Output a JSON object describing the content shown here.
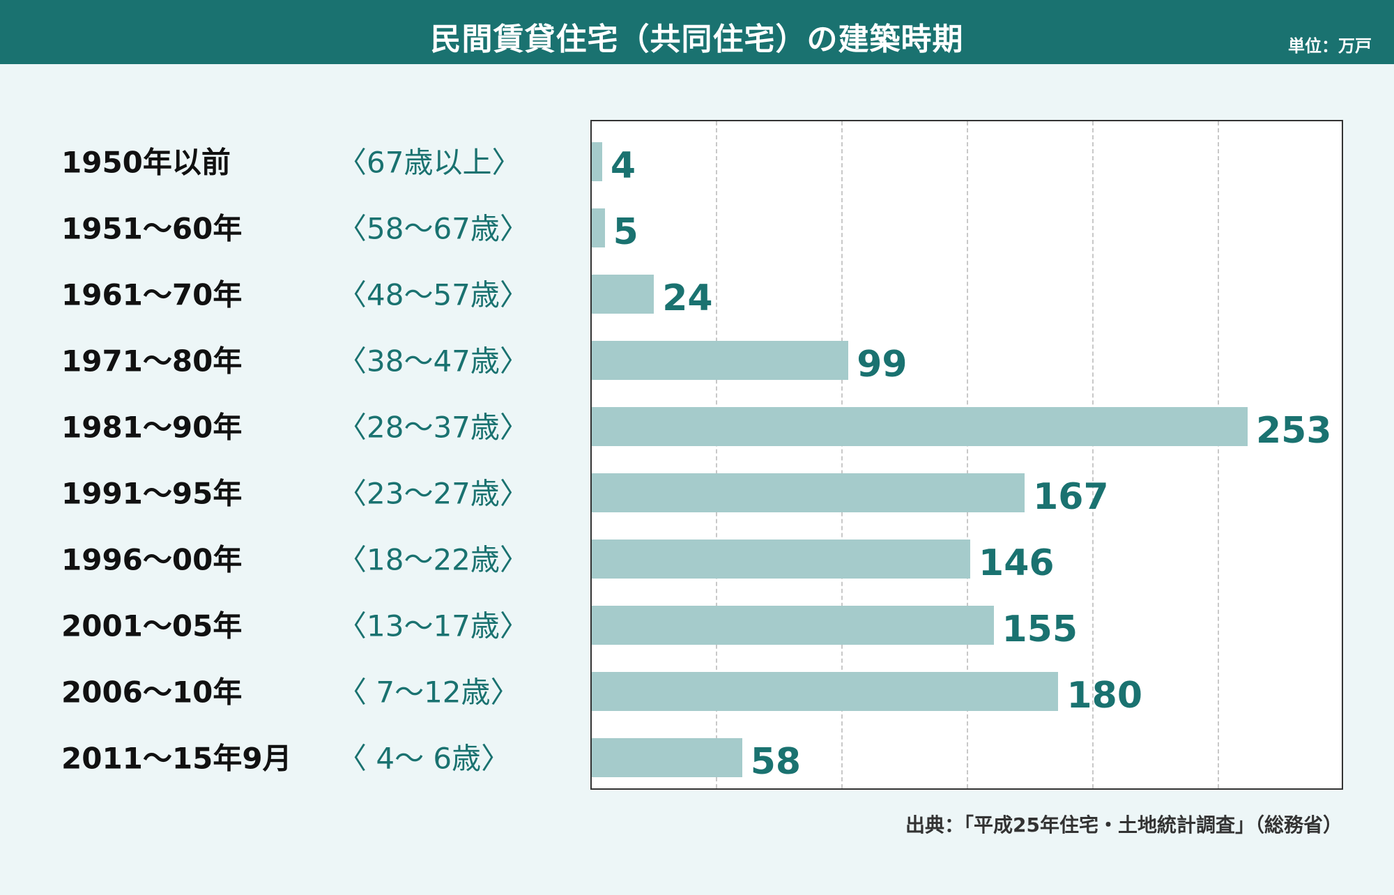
{
  "header": {
    "title": "民間賃貸住宅（共同住宅）の建築時期",
    "unit": "単位：万戸"
  },
  "source": "出典：「平成25年住宅・土地統計調査」（総務省）",
  "colors": {
    "header_bg": "#1a7270",
    "page_bg": "#edf6f7",
    "bar": "#a5cbcb",
    "value_text": "#1a7270",
    "age_text": "#1a7270"
  },
  "rows": [
    {
      "period": "1950年以前",
      "age": "〈67歳以上〉",
      "value": "4"
    },
    {
      "period": "1951〜60年",
      "age": "〈58〜67歳〉",
      "value": "5"
    },
    {
      "period": "1961〜70年",
      "age": "〈48〜57歳〉",
      "value": "24"
    },
    {
      "period": "1971〜80年",
      "age": "〈38〜47歳〉",
      "value": "99"
    },
    {
      "period": "1981〜90年",
      "age": "〈28〜37歳〉",
      "value": "253"
    },
    {
      "period": "1991〜95年",
      "age": "〈23〜27歳〉",
      "value": "167"
    },
    {
      "period": "1996〜00年",
      "age": "〈18〜22歳〉",
      "value": "146"
    },
    {
      "period": "2001〜05年",
      "age": "〈13〜17歳〉",
      "value": "155"
    },
    {
      "period": "2006〜10年",
      "age": "〈 7〜12歳〉",
      "value": "180"
    },
    {
      "period": "2011〜15年9月",
      "age": "〈 4〜 6歳〉",
      "value": "58"
    }
  ],
  "chart_data": {
    "type": "bar",
    "orientation": "horizontal",
    "title": "民間賃貸住宅（共同住宅）の建築時期",
    "unit": "万戸",
    "categories": [
      "1950年以前",
      "1951〜60年",
      "1961〜70年",
      "1971〜80年",
      "1981〜90年",
      "1991〜95年",
      "1996〜00年",
      "2001〜05年",
      "2006〜10年",
      "2011〜15年9月"
    ],
    "secondary_labels": [
      "〈67歳以上〉",
      "〈58〜67歳〉",
      "〈48〜57歳〉",
      "〈38〜47歳〉",
      "〈28〜37歳〉",
      "〈23〜27歳〉",
      "〈18〜22歳〉",
      "〈13〜17歳〉",
      "〈 7〜12歳〉",
      "〈 4〜 6歳〉"
    ],
    "values": [
      4,
      5,
      24,
      99,
      253,
      167,
      146,
      155,
      180,
      58
    ],
    "xlabel": "",
    "ylabel": "",
    "grid": "vertical dashed",
    "source": "出典：「平成25年住宅・土地統計調査」（総務省）"
  }
}
